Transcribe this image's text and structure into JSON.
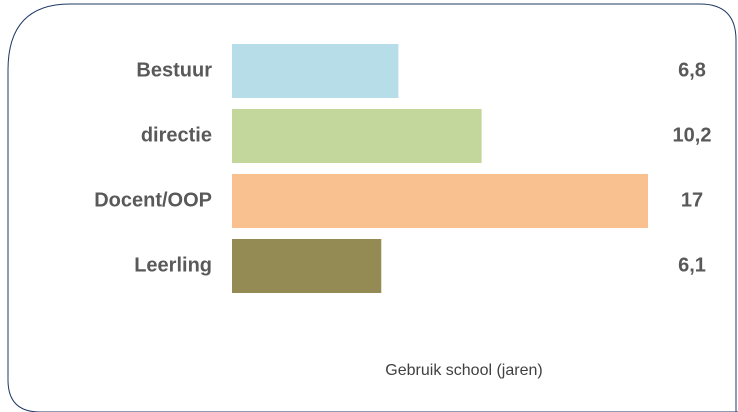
{
  "chart_data": {
    "type": "bar",
    "orientation": "horizontal",
    "categories": [
      "Bestuur",
      "directie",
      "Docent/OOP",
      "Leerling"
    ],
    "values": [
      6.8,
      10.2,
      17,
      6.1
    ],
    "value_labels": [
      "6,8",
      "10,2",
      "17",
      "6,1"
    ],
    "colors": [
      "#b7dde8",
      "#c3d69b",
      "#f9c090",
      "#948a54"
    ],
    "x_label": "Gebruik school (jaren)"
  }
}
